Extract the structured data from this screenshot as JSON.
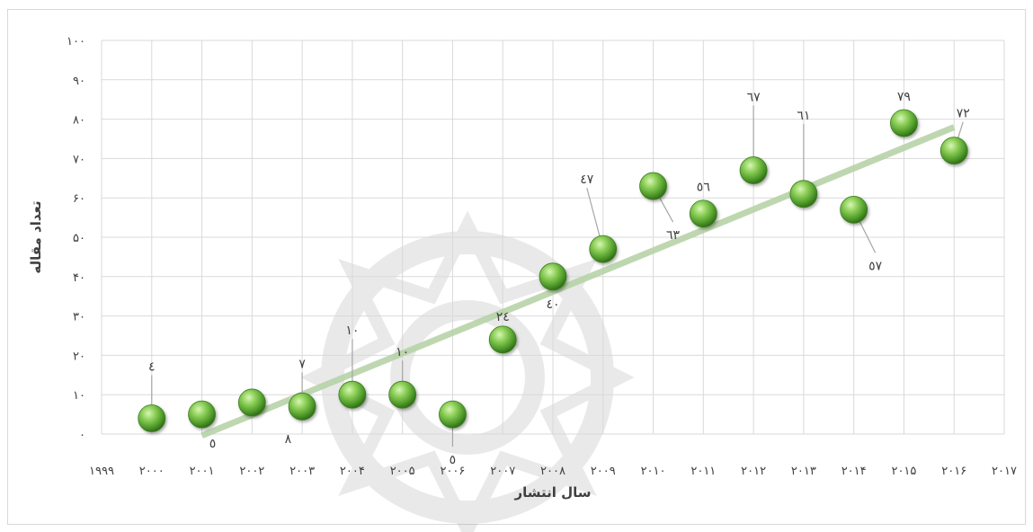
{
  "chart_data": {
    "type": "scatter",
    "title": "",
    "xlabel": "سال انتشار",
    "ylabel": "تعداد مقاله",
    "xlim": [
      1999,
      2017
    ],
    "ylim": [
      0,
      100
    ],
    "y_step": 10,
    "grid": true,
    "x_tick_labels": [
      "۱۹۹۹",
      "۲۰۰۰",
      "۲۰۰۱",
      "۲۰۰۲",
      "۲۰۰۳",
      "۲۰۰۴",
      "۲۰۰۵",
      "۲۰۰۶",
      "۲۰۰۷",
      "۲۰۰۸",
      "۲۰۰۹",
      "۲۰۱۰",
      "۲۰۱۱",
      "۲۰۱۲",
      "۲۰۱۳",
      "۲۰۱۴",
      "۲۰۱۵",
      "۲۰۱۶",
      "۲۰۱۷"
    ],
    "y_tick_labels": [
      "۰",
      "۱۰",
      "۲۰",
      "۳۰",
      "۴۰",
      "۵۰",
      "۶۰",
      "۷۰",
      "۸۰",
      "۹۰",
      "۱۰۰"
    ],
    "series": [
      {
        "x": [
          2000,
          2001,
          2002,
          2003,
          2004,
          2005,
          2006,
          2007,
          2008,
          2009,
          2010,
          2011,
          2012,
          2013,
          2014,
          2015,
          2016
        ],
        "y": [
          4,
          5,
          8,
          7,
          10,
          10,
          5,
          24,
          40,
          47,
          63,
          56,
          67,
          61,
          57,
          79,
          72
        ],
        "labels": [
          "٤",
          "٥",
          "٨",
          "٧",
          "١٠",
          "١٠",
          "٥",
          "٢٤",
          "٤٠",
          "٤٧",
          "٦٣",
          "٥٦",
          "٦٧",
          "٦١",
          "٥٧",
          "٧٩",
          "٧٢"
        ],
        "color": "#6cb33f"
      }
    ],
    "trendline": {
      "type": "linear",
      "color": "#b7d3a8"
    }
  }
}
